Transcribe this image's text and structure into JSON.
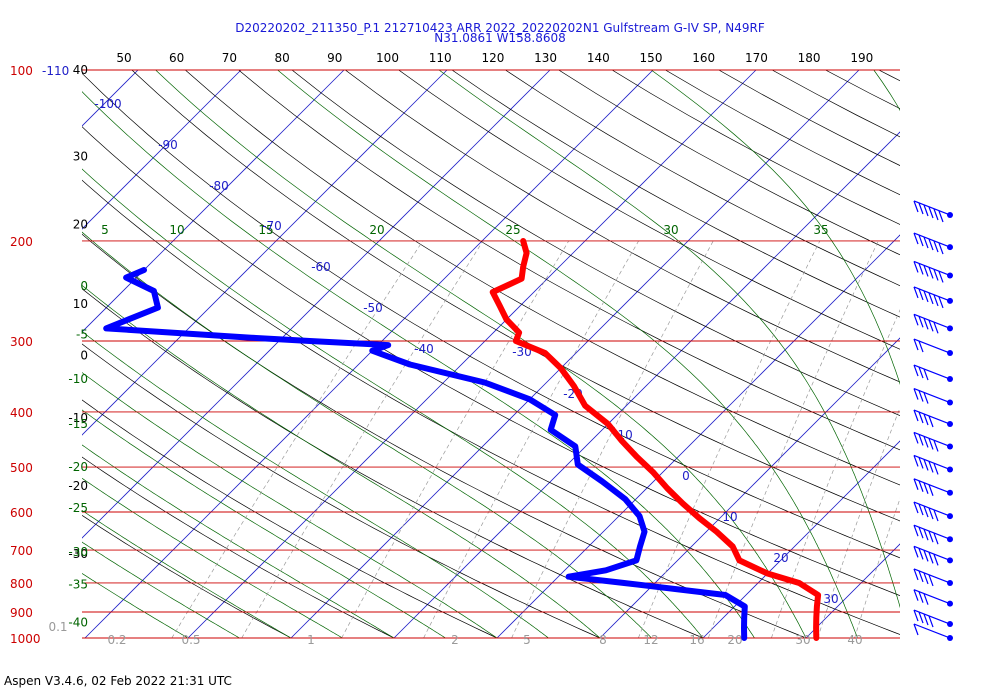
{
  "title": {
    "line1": "D20220202_211350_P.1 212710423 ARR 2022_20220202N1 Gulfstream G-IV SP, N49RF",
    "line2": "N31.0861 W158.8608"
  },
  "footer": "Aspen V3.4.6, 02 Feb 2022  21:31 UTC",
  "colors": {
    "temperature": "#ff0000",
    "dewpoint": "#0000ff",
    "isobar": "#cc0000",
    "isotherm": "#2020c8",
    "dry_adiabat": "#000000",
    "moist_adiabat": "#006400",
    "mixing_ratio": "#9a9a9a"
  },
  "chart_data": {
    "type": "line",
    "chart_kind": "skew-T log-P",
    "title": "D20220202_211350_P.1 212710423 ARR 2022_20220202N1 Gulfstream G-IV SP, N49RF",
    "subtitle": "N31.0861 W158.8608",
    "xlabel": "",
    "ylabel": "",
    "y_scale": "log",
    "y_reversed": true,
    "ylim": [
      100,
      1000
    ],
    "xlim": [
      -40,
      50
    ],
    "pressure_levels": [
      100,
      200,
      300,
      400,
      500,
      600,
      700,
      800,
      900,
      1000
    ],
    "pressure_labels": [
      "100",
      "200",
      "300",
      "400",
      "500",
      "600",
      "700",
      "800",
      "900",
      "1000"
    ],
    "top_corner_label": "-110",
    "top_scale_labels": [
      "50",
      "60",
      "70",
      "80",
      "90",
      "100",
      "110",
      "120",
      "130",
      "140",
      "150",
      "160",
      "170",
      "180",
      "190"
    ],
    "left_scale_labels": [
      {
        "text": "40",
        "p": 100
      },
      {
        "text": "30",
        "p": 142
      },
      {
        "text": "20",
        "p": 187
      },
      {
        "text": "10",
        "p": 258
      },
      {
        "text": "0",
        "p": 318
      },
      {
        "text": "-10",
        "p": 410
      },
      {
        "text": "-20",
        "p": 540
      },
      {
        "text": "-30",
        "p": 712
      }
    ],
    "isotherm_labels": [
      {
        "text": "-100",
        "t": -100
      },
      {
        "text": "-90",
        "t": -90
      },
      {
        "text": "-80",
        "t": -80
      },
      {
        "text": "-70",
        "t": -70
      },
      {
        "text": "-60",
        "t": -60
      },
      {
        "text": "-50",
        "t": -50
      },
      {
        "text": "-40",
        "t": -40
      },
      {
        "text": "-30",
        "t": -30
      },
      {
        "text": "-20",
        "t": -20
      },
      {
        "text": "-10",
        "t": -10
      },
      {
        "text": "0",
        "t": 0
      },
      {
        "text": "10",
        "t": 10
      },
      {
        "text": "20",
        "t": 20
      },
      {
        "text": "30",
        "t": 30
      }
    ],
    "moist_top_labels": [
      "5",
      "10",
      "15",
      "20",
      "25",
      "30",
      "35"
    ],
    "moist_left_labels": [
      {
        "text": "0",
        "p": 240
      },
      {
        "text": "-5",
        "p": 292
      },
      {
        "text": "-10",
        "p": 350
      },
      {
        "text": "-15",
        "p": 420
      },
      {
        "text": "-20",
        "p": 500
      },
      {
        "text": "-25",
        "p": 590
      },
      {
        "text": "-30",
        "p": 705
      },
      {
        "text": "-35",
        "p": 805
      },
      {
        "text": "-40",
        "p": 940
      }
    ],
    "mixing_ratio_labels": [
      "0.1",
      "0.2",
      "0.5",
      "1",
      "2",
      "5",
      "8",
      "12",
      "16",
      "20",
      "30",
      "40"
    ],
    "series": [
      {
        "name": "",
        "values_p": [
          200,
          210,
          222,
          233,
          246,
          260,
          275,
          290,
          300,
          315,
          335,
          360,
          390,
          420,
          450,
          480,
          510,
          545,
          580,
          615,
          650,
          690,
          730,
          770,
          800,
          840,
          880,
          920,
          960,
          1000
        ],
        "values_t": [
          -46,
          -44.5,
          -43.5,
          -42.5,
          -44,
          -42,
          -40,
          -37.5,
          -37,
          -33,
          -30,
          -27,
          -24,
          -20,
          -17,
          -14,
          -11,
          -8,
          -5,
          -2,
          1,
          4,
          6,
          10,
          14,
          17,
          18,
          19,
          20,
          21
        ]
      },
      {
        "name": "",
        "values_p": [
          225,
          232,
          245,
          262,
          285,
          296,
          300,
          305,
          312,
          330,
          355,
          380,
          405,
          430,
          460,
          495,
          530,
          570,
          610,
          650,
          690,
          730,
          760,
          780,
          800,
          840,
          880,
          920,
          960,
          1000
        ],
        "values_t": [
          -80,
          -81,
          -77,
          -75,
          -78,
          -63,
          -57,
          -49,
          -50,
          -45,
          -36,
          -30,
          -26,
          -25,
          -21,
          -19,
          -15,
          -11,
          -8,
          -6,
          -5,
          -4,
          -6,
          -9,
          -3,
          8,
          11,
          12,
          13,
          14
        ]
      }
    ],
    "wind_barbs": [
      {
        "p": 180,
        "speed": 60
      },
      {
        "p": 205,
        "speed": 65
      },
      {
        "p": 230,
        "speed": 70
      },
      {
        "p": 255,
        "speed": 55
      },
      {
        "p": 285,
        "speed": 50
      },
      {
        "p": 315,
        "speed": 15
      },
      {
        "p": 350,
        "speed": 30
      },
      {
        "p": 385,
        "speed": 30
      },
      {
        "p": 420,
        "speed": 35
      },
      {
        "p": 460,
        "speed": 50
      },
      {
        "p": 505,
        "speed": 45
      },
      {
        "p": 555,
        "speed": 40
      },
      {
        "p": 610,
        "speed": 50
      },
      {
        "p": 670,
        "speed": 50
      },
      {
        "p": 730,
        "speed": 45
      },
      {
        "p": 800,
        "speed": 35
      },
      {
        "p": 870,
        "speed": 25
      },
      {
        "p": 945,
        "speed": 35
      },
      {
        "p": 1000,
        "speed": 10
      }
    ]
  }
}
